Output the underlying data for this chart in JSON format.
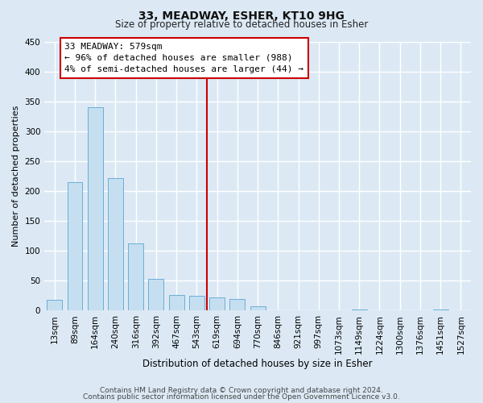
{
  "title": "33, MEADWAY, ESHER, KT10 9HG",
  "subtitle": "Size of property relative to detached houses in Esher",
  "xlabel": "Distribution of detached houses by size in Esher",
  "ylabel": "Number of detached properties",
  "bar_labels": [
    "13sqm",
    "89sqm",
    "164sqm",
    "240sqm",
    "316sqm",
    "392sqm",
    "467sqm",
    "543sqm",
    "619sqm",
    "694sqm",
    "770sqm",
    "846sqm",
    "921sqm",
    "997sqm",
    "1073sqm",
    "1149sqm",
    "1224sqm",
    "1300sqm",
    "1376sqm",
    "1451sqm",
    "1527sqm"
  ],
  "bar_values": [
    18,
    215,
    340,
    222,
    113,
    53,
    26,
    25,
    22,
    19,
    7,
    0,
    0,
    0,
    0,
    2,
    0,
    0,
    0,
    2,
    0
  ],
  "bar_color": "#c5dff0",
  "bar_edge_color": "#6baed6",
  "vline_x_index": 7.5,
  "vline_color": "#cc0000",
  "annotation_title": "33 MEADWAY: 579sqm",
  "annotation_line1": "← 96% of detached houses are smaller (988)",
  "annotation_line2": "4% of semi-detached houses are larger (44) →",
  "annotation_box_color": "#ffffff",
  "annotation_box_edge": "#cc0000",
  "ylim": [
    0,
    450
  ],
  "yticks": [
    0,
    50,
    100,
    150,
    200,
    250,
    300,
    350,
    400,
    450
  ],
  "footer_line1": "Contains HM Land Registry data © Crown copyright and database right 2024.",
  "footer_line2": "Contains public sector information licensed under the Open Government Licence v3.0.",
  "background_color": "#dce9f5",
  "plot_bg_color": "#dce9f5",
  "grid_color": "#ffffff",
  "title_fontsize": 10,
  "subtitle_fontsize": 8.5,
  "xlabel_fontsize": 8.5,
  "ylabel_fontsize": 8,
  "tick_fontsize": 7.5,
  "footer_fontsize": 6.5
}
